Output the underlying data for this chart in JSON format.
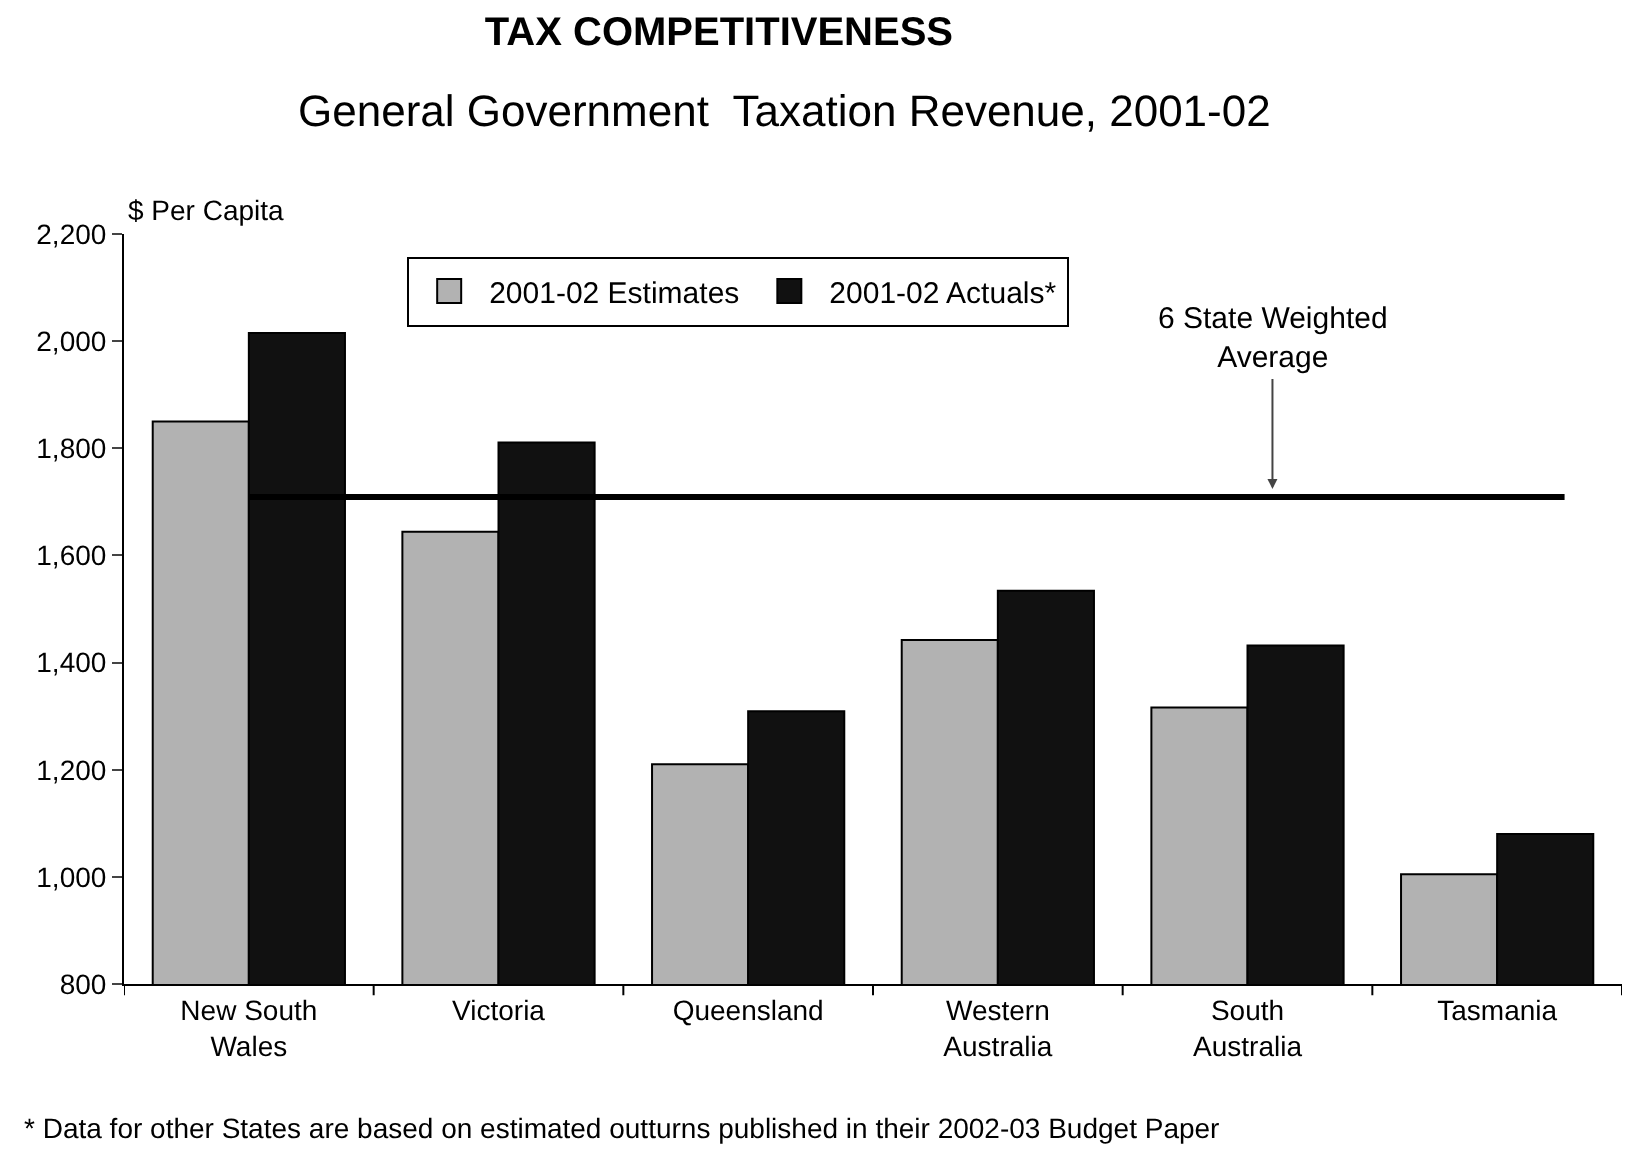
{
  "chart_data": {
    "type": "bar",
    "title": "TAX COMPETITIVENESS",
    "subtitle": "General Government  Taxation Revenue, 2001-02",
    "ylabel": "$ Per Capita",
    "categories": [
      "New South\nWales",
      "Victoria",
      "Queensland",
      "Western\nAustralia",
      "South\nAustralia",
      "Tasmania"
    ],
    "series": [
      {
        "name": "2001-02 Estimates",
        "color": "#b2b2b2",
        "values": [
          1850,
          1644,
          1210,
          1442,
          1316,
          1005
        ]
      },
      {
        "name": "2001-02 Actuals*",
        "color": "#111111",
        "values": [
          2015,
          1811,
          1309,
          1534,
          1432,
          1080
        ]
      }
    ],
    "ylim": [
      800,
      2200
    ],
    "yticks": [
      {
        "value": 800,
        "label": "800"
      },
      {
        "value": 1000,
        "label": "1,000"
      },
      {
        "value": 1200,
        "label": "1,200"
      },
      {
        "value": 1400,
        "label": "1,400"
      },
      {
        "value": 1600,
        "label": "1,600"
      },
      {
        "value": 1800,
        "label": "1,800"
      },
      {
        "value": 2000,
        "label": "2,000"
      },
      {
        "value": 2200,
        "label": "2,200"
      }
    ],
    "grid": false,
    "legend": "top",
    "ref_lines": [
      {
        "axis": "y",
        "value": 1709,
        "label": "6 State Weighted\nAverage",
        "color": "#000000"
      }
    ],
    "annotations": [
      "* Data for other States are based on estimated outturns published in their 2002-03 Budget Paper"
    ]
  }
}
